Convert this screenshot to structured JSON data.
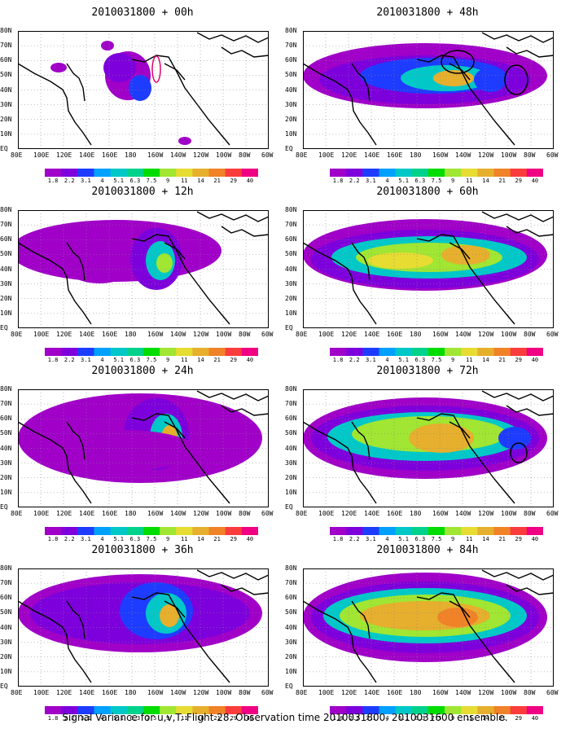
{
  "panels": [
    {
      "title": "2010031800 + 00h",
      "col": 0,
      "row": 0
    },
    {
      "title": "2010031800 + 48h",
      "col": 1,
      "row": 0
    },
    {
      "title": "2010031800 + 12h",
      "col": 0,
      "row": 1
    },
    {
      "title": "2010031800 + 60h",
      "col": 1,
      "row": 1
    },
    {
      "title": "2010031800 + 24h",
      "col": 0,
      "row": 2
    },
    {
      "title": "2010031800 + 72h",
      "col": 1,
      "row": 2
    },
    {
      "title": "2010031800 + 36h",
      "col": 0,
      "row": 3
    },
    {
      "title": "2010031800 + 84h",
      "col": 1,
      "row": 3
    }
  ],
  "axes": {
    "x_ticks": [
      "80E",
      "100E",
      "120E",
      "140E",
      "160E",
      "180",
      "160W",
      "140W",
      "120W",
      "100W",
      "80W",
      "60W"
    ],
    "y_ticks": [
      "80N",
      "70N",
      "60N",
      "50N",
      "40N",
      "30N",
      "20N",
      "10N",
      "EQ"
    ]
  },
  "colorbar": {
    "levels": [
      "1.8",
      "2.2",
      "3.1",
      "4",
      "5.1",
      "6.3",
      "7.5",
      "9",
      "11",
      "14",
      "21",
      "29",
      "40"
    ],
    "colors": [
      "#a000c8",
      "#7d00dc",
      "#1e3cff",
      "#00a0ff",
      "#00c8c8",
      "#00d28c",
      "#00dc00",
      "#a0e632",
      "#e6dc32",
      "#e6af2d",
      "#f08228",
      "#fa3c3c",
      "#f00082"
    ]
  },
  "caption": "Signal Variance for u,v,T. Flight 28. Observation time 2010031800. 2010031600 ensemble."
}
